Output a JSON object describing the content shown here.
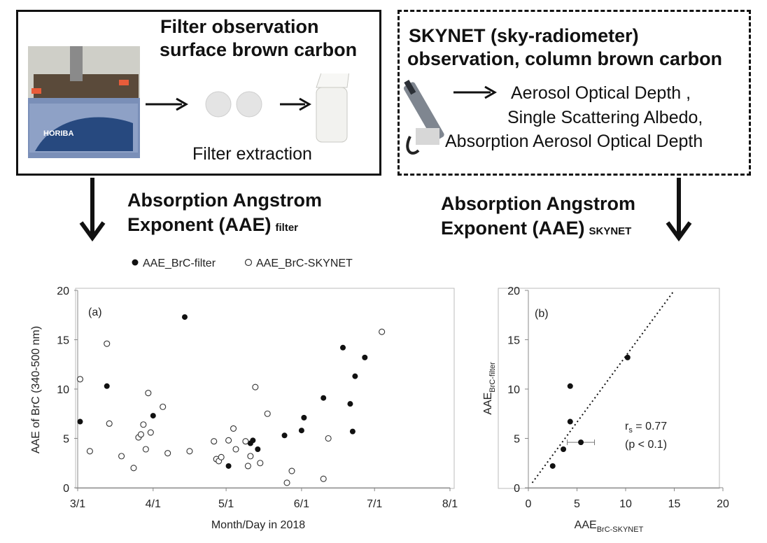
{
  "top_left": {
    "title_line1": "Filter observation",
    "title_line2": "surface brown carbon",
    "device_label": "HORIBA",
    "extraction_label": "Filter extraction"
  },
  "top_right": {
    "title_line1": "SKYNET (sky-radiometer)",
    "title_line2": "observation, column brown carbon",
    "products": [
      "Aerosol Optical Depth ,",
      "Single Scattering Albedo,",
      "Absorption Aerosol Optical Depth"
    ]
  },
  "aae_filter": {
    "line1": "Absorption Angstrom",
    "line2": "Exponent (AAE)",
    "sub": "filter"
  },
  "aae_skynet": {
    "line1": "Absorption Angstrom",
    "line2": "Exponent (AAE)",
    "sub": "SKYNET"
  },
  "legend": {
    "filled": "AAE_BrC-filter",
    "open": "AAE_BrC-SKYNET"
  },
  "chart_data": [
    {
      "type": "scatter",
      "panel_label": "(a)",
      "xlabel": "Month/Day in 2018",
      "ylabel": "AAE of BrC (340-500 nm)",
      "x_ticks": [
        "3/1",
        "4/1",
        "5/1",
        "6/1",
        "7/1",
        "8/1"
      ],
      "xlim": [
        "2018-03-01",
        "2018-08-01"
      ],
      "ylim": [
        0,
        20
      ],
      "y_ticks": [
        0,
        5,
        10,
        15,
        20
      ],
      "series": [
        {
          "name": "AAE_BrC-filter",
          "marker": "filled",
          "points": [
            [
              "2018-03-02",
              6.7
            ],
            [
              "2018-03-13",
              10.3
            ],
            [
              "2018-04-01",
              7.3
            ],
            [
              "2018-04-14",
              17.3
            ],
            [
              "2018-05-02",
              2.2
            ],
            [
              "2018-05-11",
              4.5
            ],
            [
              "2018-05-12",
              4.8
            ],
            [
              "2018-05-14",
              3.9
            ],
            [
              "2018-05-25",
              5.3
            ],
            [
              "2018-06-01",
              5.8
            ],
            [
              "2018-06-02",
              7.1
            ],
            [
              "2018-06-10",
              9.1
            ],
            [
              "2018-06-18",
              14.2
            ],
            [
              "2018-06-21",
              8.5
            ],
            [
              "2018-06-22",
              5.7
            ],
            [
              "2018-06-23",
              11.3
            ],
            [
              "2018-06-27",
              13.2
            ]
          ]
        },
        {
          "name": "AAE_BrC-SKYNET",
          "marker": "open",
          "points": [
            [
              "2018-03-02",
              11.0
            ],
            [
              "2018-03-06",
              3.7
            ],
            [
              "2018-03-13",
              14.6
            ],
            [
              "2018-03-14",
              6.5
            ],
            [
              "2018-03-19",
              3.2
            ],
            [
              "2018-03-24",
              2.0
            ],
            [
              "2018-03-26",
              5.1
            ],
            [
              "2018-03-27",
              5.4
            ],
            [
              "2018-03-28",
              6.4
            ],
            [
              "2018-03-29",
              3.9
            ],
            [
              "2018-03-30",
              9.6
            ],
            [
              "2018-03-31",
              5.6
            ],
            [
              "2018-04-05",
              8.2
            ],
            [
              "2018-04-07",
              3.5
            ],
            [
              "2018-04-16",
              3.7
            ],
            [
              "2018-04-26",
              4.7
            ],
            [
              "2018-04-27",
              2.9
            ],
            [
              "2018-04-28",
              2.7
            ],
            [
              "2018-04-29",
              3.1
            ],
            [
              "2018-05-02",
              4.8
            ],
            [
              "2018-05-04",
              6.0
            ],
            [
              "2018-05-05",
              3.9
            ],
            [
              "2018-05-09",
              4.7
            ],
            [
              "2018-05-10",
              2.2
            ],
            [
              "2018-05-11",
              3.2
            ],
            [
              "2018-05-13",
              10.2
            ],
            [
              "2018-05-15",
              2.5
            ],
            [
              "2018-05-18",
              7.5
            ],
            [
              "2018-05-26",
              0.5
            ],
            [
              "2018-05-28",
              1.7
            ],
            [
              "2018-06-10",
              0.9
            ],
            [
              "2018-06-12",
              5.0
            ],
            [
              "2018-07-04",
              15.8
            ]
          ]
        }
      ]
    },
    {
      "type": "scatter",
      "panel_label": "(b)",
      "xlabel": "AAE",
      "xlabel_sub": "BrC-SKYNET",
      "ylabel": "AAE",
      "ylabel_sub": "BrC-filter",
      "xlim": [
        0,
        20
      ],
      "ylim": [
        0,
        20
      ],
      "x_ticks": [
        0,
        5,
        10,
        15,
        20
      ],
      "y_ticks": [
        0,
        5,
        10,
        15,
        20
      ],
      "points": [
        {
          "x": 2.5,
          "y": 2.2
        },
        {
          "x": 3.6,
          "y": 3.9
        },
        {
          "x": 4.3,
          "y": 6.7
        },
        {
          "x": 4.3,
          "y": 10.3
        },
        {
          "x": 5.4,
          "y": 4.6,
          "xerr": 1.4
        },
        {
          "x": 10.2,
          "y": 13.2
        }
      ],
      "fit_line": {
        "style": "dotted",
        "x": [
          0.4,
          15.0
        ],
        "y": [
          0.5,
          20.0
        ]
      },
      "annotation_r": "r",
      "annotation_r_sub": "s",
      "annotation_r_value": " = 0.77",
      "annotation_p": "(p < 0.1)"
    }
  ]
}
